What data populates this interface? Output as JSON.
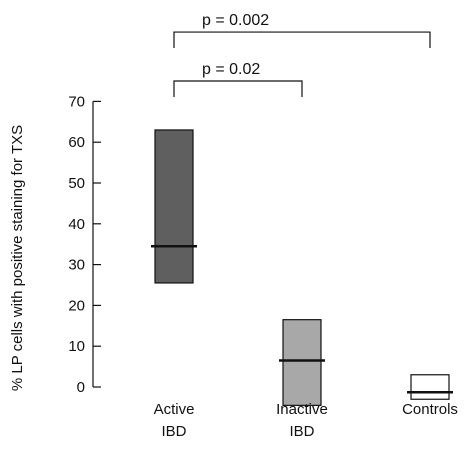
{
  "chart_data": {
    "type": "bar",
    "chart_kind": "range bar with median line",
    "ylabel": "% LP cells with positive staining for TXS",
    "ylim": [
      0,
      70
    ],
    "yticks": [
      0,
      10,
      20,
      30,
      40,
      50,
      60,
      70
    ],
    "categories": [
      {
        "line1": "Active",
        "line2": "IBD",
        "low": 25.5,
        "high": 63,
        "median": 34.5,
        "color": "#5f5f5f"
      },
      {
        "line1": "Inactive",
        "line2": "IBD",
        "low": -4.5,
        "high": 16.5,
        "median": 6.5,
        "color": "#a8a8a8"
      },
      {
        "line1": "Controls",
        "line2": "",
        "low": -3,
        "high": 3,
        "median": -1.3,
        "color": "#ffffff"
      }
    ],
    "annotations": [
      {
        "label": "p = 0.02",
        "from": 0,
        "to": 1,
        "level": 75
      },
      {
        "label": "p = 0.002",
        "from": 0,
        "to": 2,
        "level": 87
      }
    ]
  }
}
